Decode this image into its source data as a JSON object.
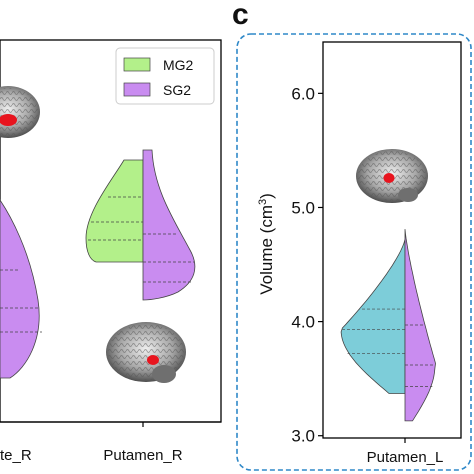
{
  "panel_label": "c",
  "chart_data": [
    {
      "type": "violin",
      "panel": "left (partial)",
      "x_tick_labels": [
        "te_R",
        "Putamen_R"
      ],
      "legend": {
        "placement": "top-right",
        "entries": [
          {
            "name": "MG2",
            "color": "#b3f08a"
          },
          {
            "name": "SG2",
            "color": "#c98cf0"
          }
        ]
      },
      "series": [
        {
          "name": "MG2",
          "color": "#b3f08a",
          "category": "Putamen_R"
        },
        {
          "name": "SG2",
          "color": "#c98cf0",
          "category": "Putamen_R"
        }
      ],
      "y_tick_labels": [],
      "ylabel": ""
    },
    {
      "type": "violin",
      "panel": "c",
      "x_tick_labels": [
        "Putamen_L"
      ],
      "ylabel_main": "Volume (cm",
      "ylabel_sup": "3",
      "ylabel_close": ")",
      "y_ticks": [
        3.0,
        4.0,
        5.0,
        6.0
      ],
      "y_tick_labels": [
        "3.0",
        "4.0",
        "5.0",
        "6.0"
      ],
      "ylim": [
        2.98,
        6.45
      ],
      "series": [
        {
          "name": "MG2",
          "color": "#7dcdd9",
          "min": 3.37,
          "max": 4.72,
          "quartiles": [
            3.72,
            3.93,
            4.11
          ]
        },
        {
          "name": "SG2",
          "color": "#c98cf0",
          "min": 3.13,
          "max": 4.81,
          "quartiles": [
            3.43,
            3.62,
            3.97
          ]
        }
      ]
    }
  ],
  "colors": {
    "mg2_left": "#b3f08a",
    "sg2": "#c98cf0",
    "mg2_right": "#7dcdd9",
    "panel_border": "#2f88c8",
    "brain_lesion": "#e8141e"
  },
  "icons": [
    "brain-slice-image"
  ]
}
